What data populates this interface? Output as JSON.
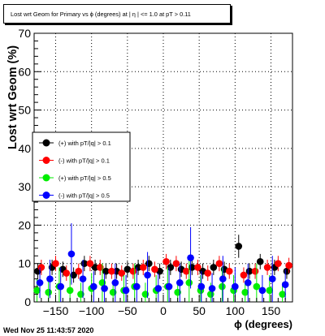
{
  "timestamp": "Wed Nov 25 11:43:57 2020",
  "chart_data": {
    "type": "scatter",
    "title": "Lost wrt Geom for Primary vs ϕ (degrees) at | η | <= 1.0 at pT > 0.11",
    "xlabel": "ϕ (degrees)",
    "ylabel": "Lost wrt Geom (%)",
    "xlim": [
      -180,
      180
    ],
    "ylim": [
      0,
      70
    ],
    "x_ticks": [
      -150,
      -100,
      -50,
      0,
      50,
      100,
      150
    ],
    "y_ticks": [
      0,
      10,
      20,
      30,
      40,
      50,
      60,
      70
    ],
    "grid": true,
    "legend_position": "middle-left",
    "colors": {
      "black": "#000000",
      "red": "#ff0000",
      "green": "#00ee00",
      "blue": "#0000ff"
    },
    "series": [
      {
        "name": "(+) with pT/|q| > 0.1",
        "color": "#000000",
        "x": [
          -175,
          -155,
          -140,
          -125,
          -110,
          -95,
          -80,
          -65,
          -50,
          -35,
          -20,
          -5,
          10,
          25,
          40,
          55,
          70,
          85,
          105,
          120,
          135,
          155,
          172
        ],
        "y": [
          8,
          9,
          8.5,
          7,
          10,
          9,
          8,
          8,
          8.5,
          9,
          10,
          8,
          9,
          8.5,
          9,
          8,
          9,
          8.5,
          14.5,
          8,
          10.5,
          9,
          8
        ],
        "err": [
          2,
          2,
          2,
          2,
          2,
          2,
          2,
          2,
          2,
          2,
          2,
          2,
          2,
          2,
          2,
          2,
          2,
          2,
          3,
          2,
          2,
          2,
          2
        ]
      },
      {
        "name": "(-) with pT/|q| > 0.1",
        "color": "#ff0000",
        "x": [
          -170,
          -150,
          -135,
          -118,
          -102,
          -88,
          -72,
          -58,
          -42,
          -28,
          -12,
          4,
          18,
          32,
          48,
          62,
          78,
          92,
          112,
          128,
          145,
          160,
          175
        ],
        "y": [
          9,
          10,
          7.5,
          8,
          10,
          9,
          8,
          7.5,
          8,
          9,
          8.5,
          10.5,
          10,
          8,
          9,
          7.5,
          10,
          8,
          7,
          8,
          9,
          10,
          9.5
        ],
        "err": [
          2,
          2,
          2,
          2,
          2,
          2,
          2,
          2,
          2,
          2,
          2,
          2,
          2,
          2,
          2,
          2,
          2,
          2,
          2,
          2,
          2,
          2,
          2
        ]
      },
      {
        "name": "(+) with pT/|q| > 0.5",
        "color": "#00ee00",
        "x": [
          -176,
          -160,
          -145,
          -130,
          -115,
          -100,
          -85,
          -70,
          -55,
          -40,
          -25,
          -10,
          6,
          20,
          36,
          52,
          66,
          82,
          98,
          114,
          130,
          148,
          166
        ],
        "y": [
          3,
          2.5,
          4,
          3,
          2,
          3.5,
          5,
          2.5,
          3,
          4,
          2,
          3,
          4,
          2.5,
          5,
          3,
          2,
          4,
          3,
          2.5,
          4,
          3,
          2
        ],
        "err": [
          3,
          4,
          5,
          4,
          3,
          4,
          5,
          3,
          4,
          6,
          3,
          4,
          5,
          3,
          6,
          4,
          3,
          5,
          4,
          3,
          6,
          4,
          3
        ]
      },
      {
        "name": "(-) with pT/|q| > 0.5",
        "color": "#0000ff",
        "x": [
          -172,
          -158,
          -143,
          -128,
          -112,
          -97,
          -82,
          -67,
          -52,
          -37,
          -22,
          -7,
          8,
          23,
          38,
          53,
          68,
          83,
          100,
          118,
          138,
          152,
          170
        ],
        "y": [
          5,
          6,
          4,
          12.5,
          6,
          4,
          3.5,
          5,
          3,
          4,
          7,
          3.5,
          4,
          5,
          11.5,
          4,
          3.5,
          6,
          4,
          5,
          3,
          6,
          4.5
        ],
        "err": [
          4,
          5,
          5,
          8,
          5,
          4,
          4,
          5,
          4,
          5,
          6,
          4,
          5,
          5,
          8,
          4,
          4,
          6,
          5,
          5,
          4,
          6,
          4
        ]
      }
    ]
  }
}
